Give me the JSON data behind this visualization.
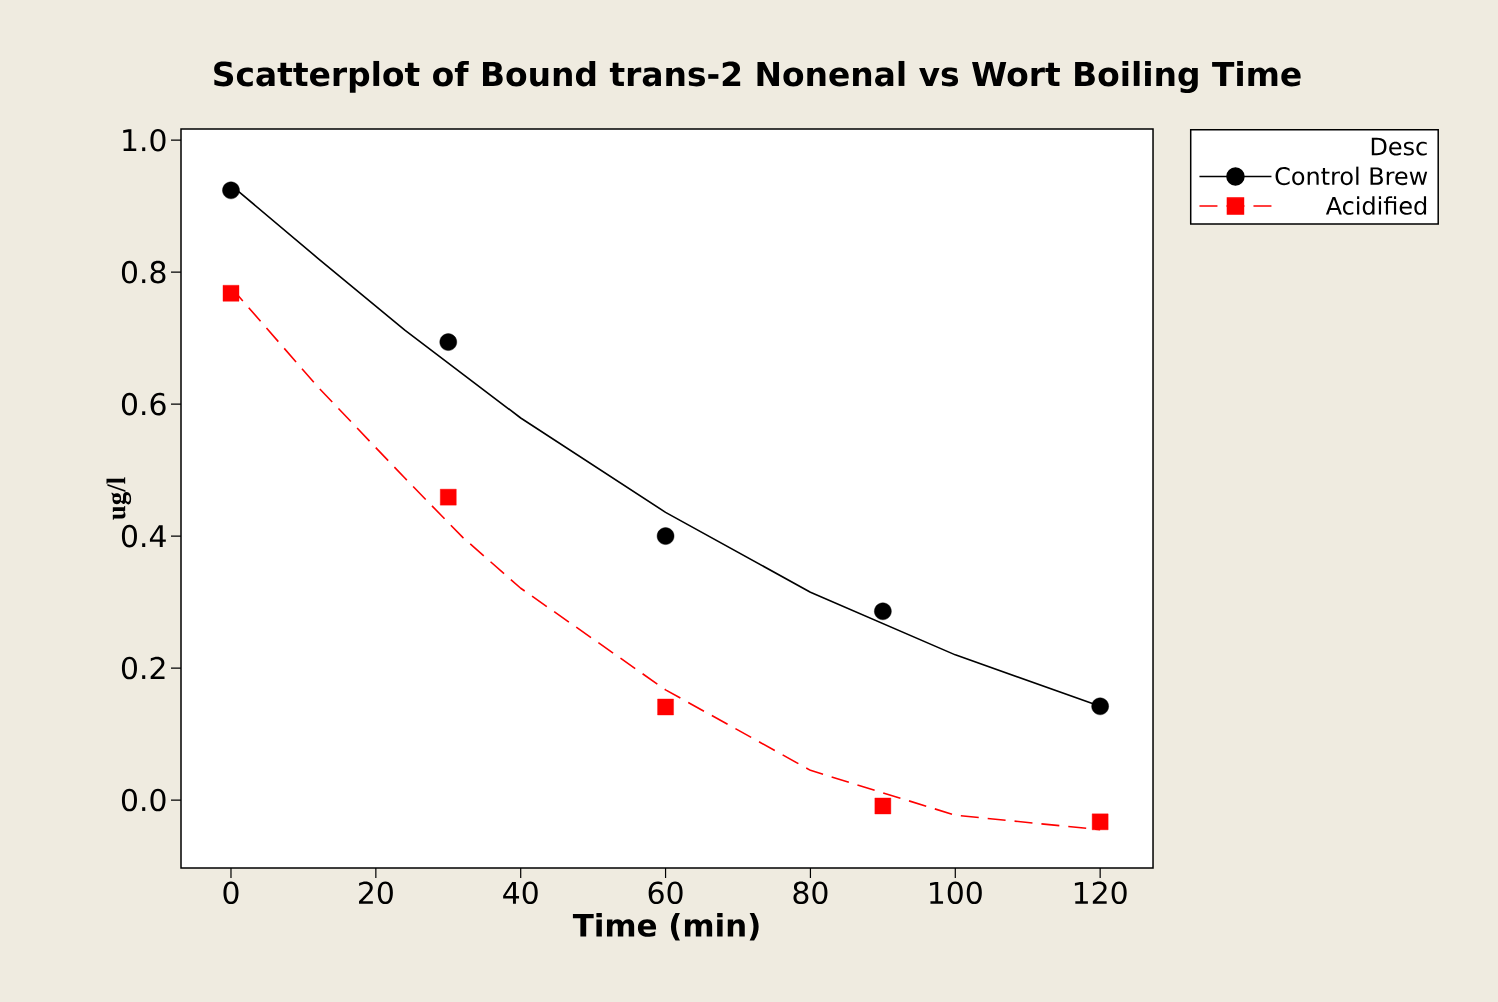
{
  "chart_data": {
    "type": "scatter",
    "title": "Scatterplot of Bound trans-2 Nonenal vs Wort Boiling Time",
    "xlabel": "Time (min)",
    "ylabel": "ug/l",
    "legend_title": "Desc",
    "legend": "right",
    "grid": false,
    "xlim": [
      -6.9,
      127.3
    ],
    "ylim": [
      -0.103,
      1.017
    ],
    "xticks": [
      0,
      20,
      40,
      60,
      80,
      100,
      120
    ],
    "yticks": [
      {
        "value": 0,
        "label": "0.0"
      },
      {
        "value": 0.2,
        "label": "0.2"
      },
      {
        "value": 0.4,
        "label": "0.4"
      },
      {
        "value": 0.6,
        "label": "0.6"
      },
      {
        "value": 0.8,
        "label": "0.8"
      },
      {
        "value": 1,
        "label": "1.0"
      }
    ],
    "series": [
      {
        "name": "Control Brew",
        "marker": "circle",
        "color": "#000000",
        "x": [
          0,
          30,
          60,
          90,
          120
        ],
        "values": [
          0.924,
          0.694,
          0.4,
          0.286,
          0.142
        ]
      },
      {
        "name": "Acidified",
        "marker": "square",
        "color": "#ff0000",
        "x": [
          0,
          30,
          60,
          90,
          120
        ],
        "values": [
          0.768,
          0.459,
          0.141,
          -0.009,
          -0.033
        ]
      },
      {
        "type": "line",
        "marker": "none",
        "line_style": "solid",
        "color": "#000000",
        "x": [
          0,
          12,
          24,
          40,
          60,
          80,
          100,
          120
        ],
        "values": [
          0.932,
          0.821,
          0.712,
          0.579,
          0.436,
          0.315,
          0.22,
          0.142
        ]
      },
      {
        "type": "line",
        "marker": "none",
        "line_style": "dashed",
        "color": "#ff0000",
        "x": [
          0,
          12,
          24,
          32,
          40,
          60,
          80,
          100,
          120
        ],
        "values": [
          0.777,
          0.626,
          0.488,
          0.398,
          0.321,
          0.167,
          0.045,
          -0.023,
          -0.045
        ]
      }
    ]
  }
}
